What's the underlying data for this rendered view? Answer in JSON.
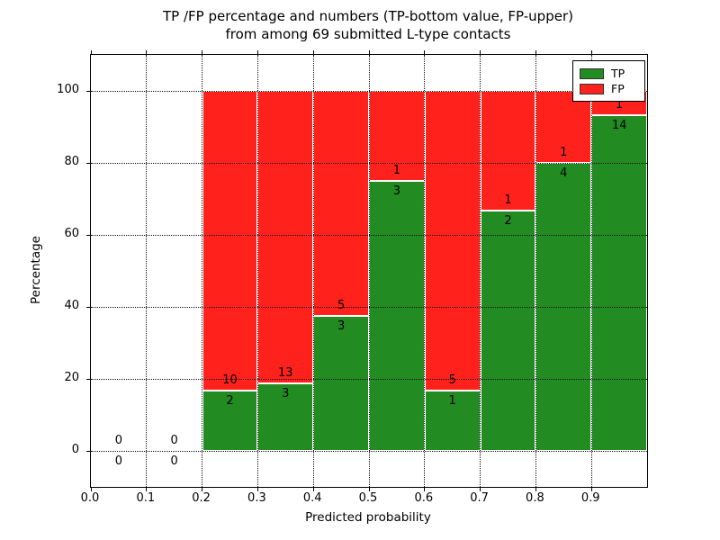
{
  "title": {
    "line1": "TP /FP percentage and numbers (TP-bottom value, FP-upper)",
    "line2": "from among 69 submitted L-type contacts"
  },
  "axes": {
    "xlabel": "Predicted probability",
    "ylabel": "Percentage",
    "x_tick_labels": [
      "0.0",
      "0.1",
      "0.2",
      "0.3",
      "0.4",
      "0.5",
      "0.6",
      "0.7",
      "0.8",
      "0.9"
    ],
    "x_tick_values": [
      0.0,
      0.1,
      0.2,
      0.3,
      0.4,
      0.5,
      0.6,
      0.7,
      0.8,
      0.9
    ],
    "y_tick_labels": [
      "0",
      "20",
      "40",
      "60",
      "80",
      "100"
    ],
    "y_tick_values": [
      0,
      20,
      40,
      60,
      80,
      100
    ],
    "xlim": [
      0.0,
      1.0
    ],
    "ylim": [
      -10,
      110
    ],
    "grid": "dotted, drawn above bars"
  },
  "legend": {
    "position": "upper right",
    "items": [
      {
        "label": "TP",
        "color": "#228b22"
      },
      {
        "label": "FP",
        "color": "#ff221c"
      }
    ]
  },
  "colors": {
    "tp_green": "#228b22",
    "fp_red": "#ff221c",
    "bar_edge": "#ffffff",
    "text": "#000000"
  },
  "chart_data": {
    "type": "bar",
    "stacked": true,
    "normalized_to_percent": true,
    "title": "TP /FP percentage and numbers (TP-bottom value, FP-upper) from among 69 submitted L-type contacts",
    "xlabel": "Predicted probability",
    "ylabel": "Percentage",
    "total_contacts": 69,
    "bin_width": 0.1,
    "bins": [
      {
        "x_start": 0.0,
        "x_end": 0.1,
        "tp": 0,
        "fp": 0,
        "tp_pct": 0,
        "fp_pct": 0
      },
      {
        "x_start": 0.1,
        "x_end": 0.2,
        "tp": 0,
        "fp": 0,
        "tp_pct": 0,
        "fp_pct": 0
      },
      {
        "x_start": 0.2,
        "x_end": 0.3,
        "tp": 2,
        "fp": 10,
        "tp_pct": 16.67,
        "fp_pct": 83.33
      },
      {
        "x_start": 0.3,
        "x_end": 0.4,
        "tp": 3,
        "fp": 13,
        "tp_pct": 18.75,
        "fp_pct": 81.25
      },
      {
        "x_start": 0.4,
        "x_end": 0.5,
        "tp": 3,
        "fp": 5,
        "tp_pct": 37.5,
        "fp_pct": 62.5
      },
      {
        "x_start": 0.5,
        "x_end": 0.6,
        "tp": 3,
        "fp": 1,
        "tp_pct": 75.0,
        "fp_pct": 25.0
      },
      {
        "x_start": 0.6,
        "x_end": 0.7,
        "tp": 1,
        "fp": 5,
        "tp_pct": 16.67,
        "fp_pct": 83.33
      },
      {
        "x_start": 0.7,
        "x_end": 0.8,
        "tp": 2,
        "fp": 1,
        "tp_pct": 66.67,
        "fp_pct": 33.33
      },
      {
        "x_start": 0.8,
        "x_end": 0.9,
        "tp": 4,
        "fp": 1,
        "tp_pct": 80.0,
        "fp_pct": 20.0
      },
      {
        "x_start": 0.9,
        "x_end": 1.0,
        "tp": 14,
        "fp": 1,
        "tp_pct": 93.33,
        "fp_pct": 6.67
      }
    ]
  }
}
